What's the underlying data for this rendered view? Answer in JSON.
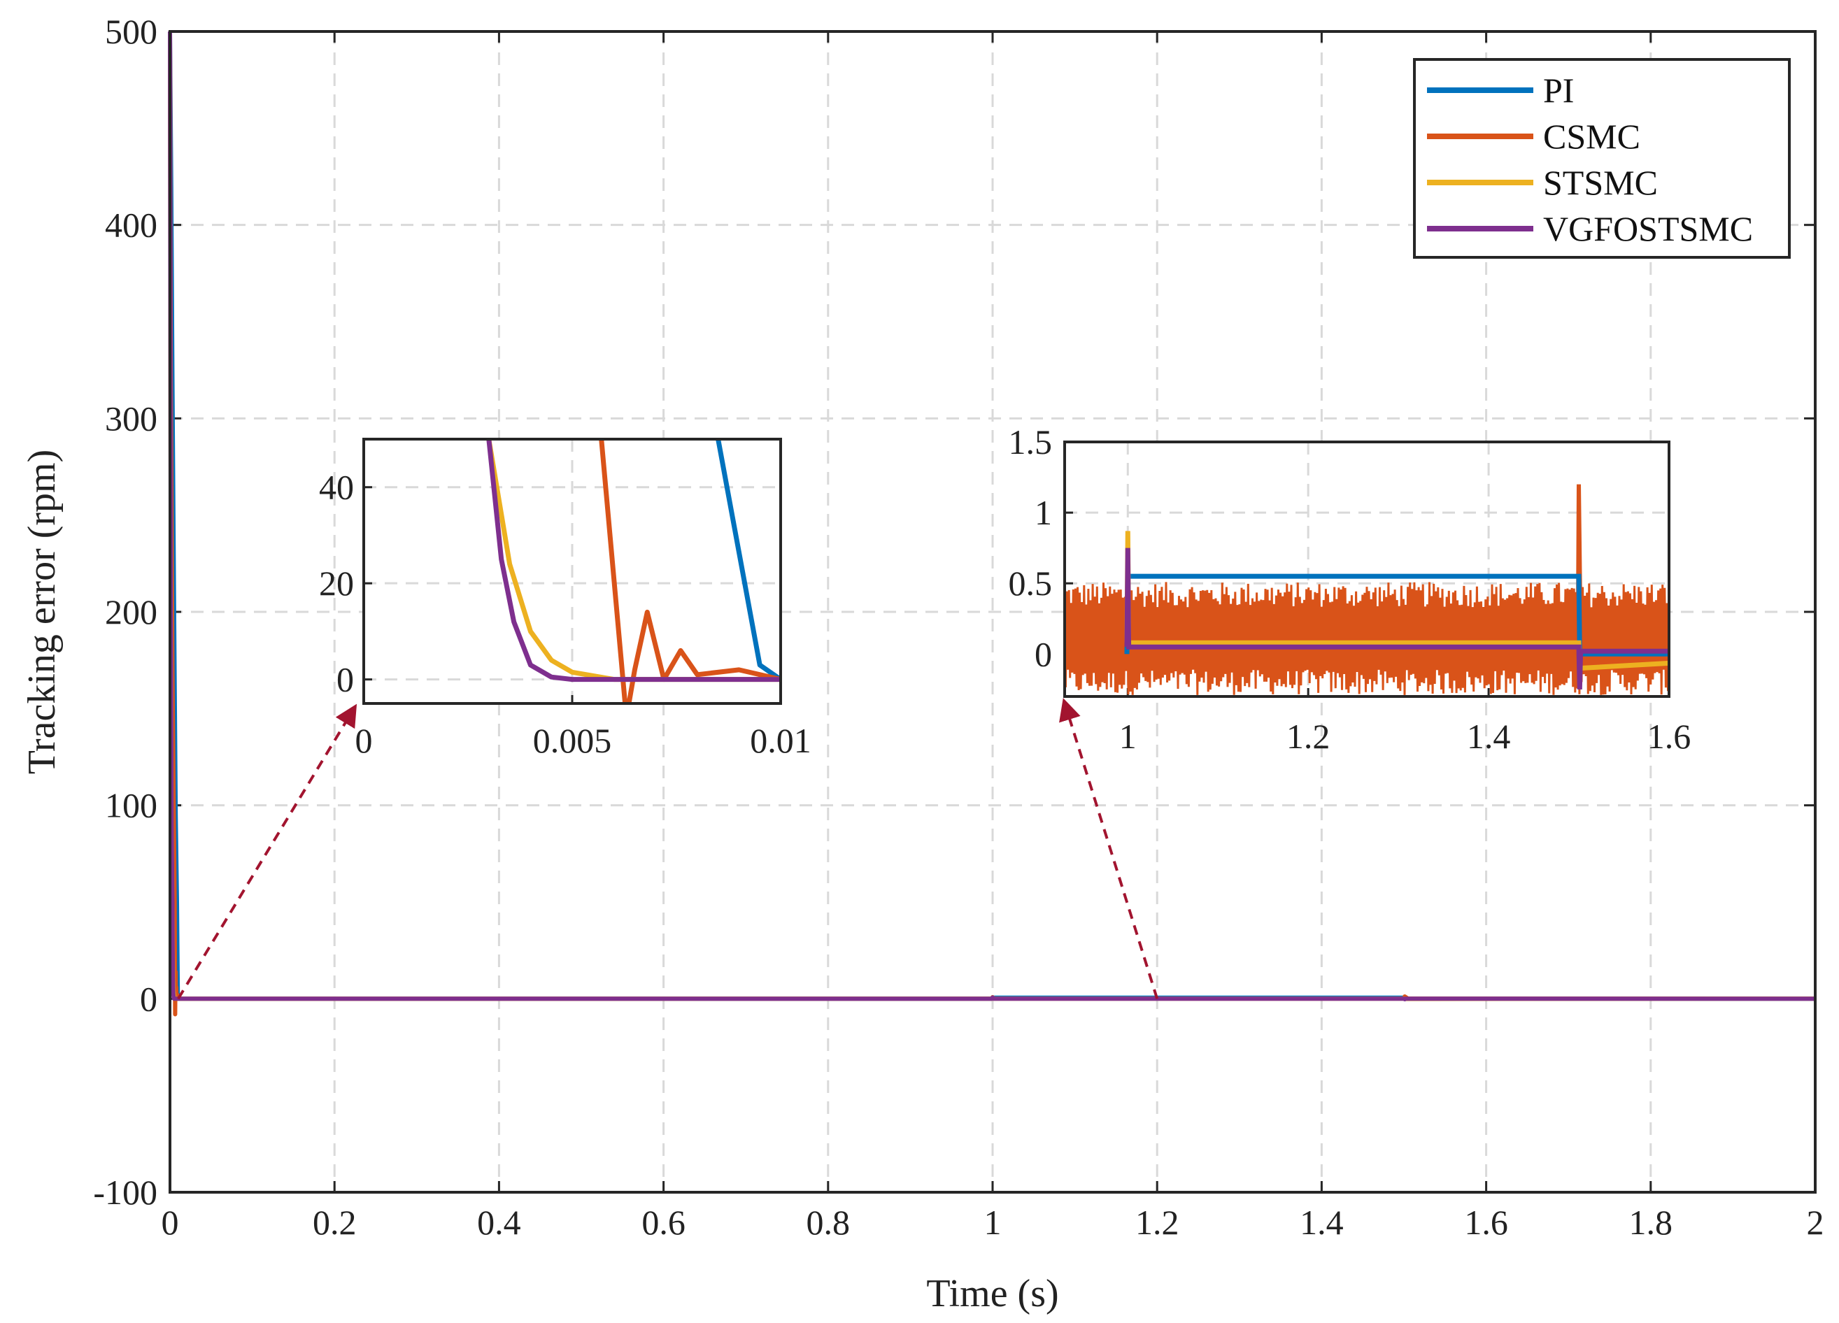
{
  "chart_data": {
    "type": "line",
    "title": "",
    "xlabel": "Time (s)",
    "ylabel": "Tracking error (rpm)",
    "xlim": [
      0,
      2
    ],
    "ylim": [
      -100,
      500
    ],
    "xticks": [
      "0",
      "0.2",
      "0.4",
      "0.6",
      "0.8",
      "1",
      "1.2",
      "1.4",
      "1.6",
      "1.8",
      "2"
    ],
    "yticks": [
      "-100",
      "0",
      "100",
      "200",
      "300",
      "400",
      "500"
    ],
    "grid": true,
    "legend_position": "top-right",
    "series": [
      {
        "name": "PI",
        "color": "#0072BD",
        "x": [
          0,
          0.0015,
          0.003,
          0.005,
          0.007,
          0.0085,
          0.0095,
          0.01,
          0.02,
          0.999,
          1.0,
          1.5,
          1.501,
          2.0
        ],
        "y": [
          500,
          420,
          320,
          200,
          95,
          50,
          3,
          0,
          0,
          0,
          0.55,
          0.55,
          0,
          0
        ]
      },
      {
        "name": "CSMC",
        "color": "#D95319",
        "x": [
          0,
          0.001,
          0.003,
          0.0057,
          0.0063,
          0.0065,
          0.0068,
          0.0072,
          0.0076,
          0.008,
          0.009,
          0.01,
          0.999,
          1.0,
          1.5,
          1.501,
          1.505,
          2.0
        ],
        "y": [
          500,
          320,
          170,
          50,
          -8,
          2,
          14,
          0,
          6,
          1,
          2,
          0,
          0,
          0.1,
          0.1,
          1.2,
          0.1,
          0.1
        ]
      },
      {
        "name": "STSMC",
        "color": "#EDB120",
        "x": [
          0,
          0.001,
          0.002,
          0.003,
          0.0035,
          0.004,
          0.0045,
          0.005,
          0.006,
          0.01,
          0.999,
          1.0,
          1.001,
          1.5,
          1.501,
          2.0
        ],
        "y": [
          500,
          220,
          95,
          50,
          24,
          10,
          4,
          1.5,
          0,
          0,
          0.08,
          0.87,
          0.08,
          0.08,
          -0.1,
          0.08
        ]
      },
      {
        "name": "VGFOSTSMC",
        "color": "#7E2F8E",
        "x": [
          0,
          0.001,
          0.002,
          0.003,
          0.0033,
          0.0036,
          0.004,
          0.0045,
          0.005,
          0.01,
          0.999,
          1.0,
          1.001,
          1.5,
          1.501,
          1.502,
          2.0
        ],
        "y": [
          500,
          200,
          90,
          50,
          25,
          12,
          3,
          0.5,
          0,
          0,
          0.05,
          0.75,
          0.05,
          0.05,
          -0.25,
          0.02,
          0.02
        ]
      }
    ],
    "insets": [
      {
        "xlim": [
          0,
          0.01
        ],
        "ylim": [
          -5,
          50
        ],
        "xticks": [
          "0",
          "0.005",
          "0.01"
        ],
        "yticks": [
          "0",
          "20",
          "40"
        ],
        "annotation": "zoom arrow from (0.01, 0) on main plot"
      },
      {
        "xlim": [
          0.93,
          1.6
        ],
        "ylim": [
          -0.3,
          1.5
        ],
        "xticks": [
          "1",
          "1.2",
          "1.4",
          "1.6"
        ],
        "yticks": [
          "0",
          "0.5",
          "1",
          "1.5"
        ],
        "annotation": "zoom arrow from (1.2, 0) on main plot"
      }
    ]
  }
}
